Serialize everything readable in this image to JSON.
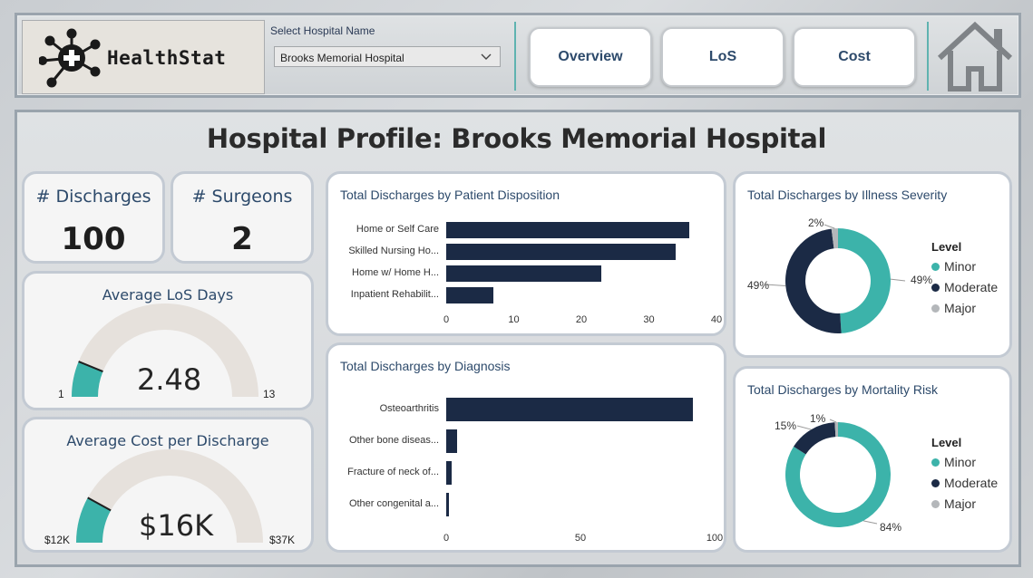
{
  "header": {
    "logo_text": "HealthStat",
    "select_label": "Select Hospital Name",
    "select_value": "Brooks Memorial Hospital",
    "nav": {
      "overview": "Overview",
      "los": "LoS",
      "cost": "Cost"
    }
  },
  "page": {
    "title": "Hospital Profile: Brooks Memorial Hospital"
  },
  "kpis": {
    "discharges_label": "# Discharges",
    "discharges_value": "100",
    "surgeons_label": "# Surgeons",
    "surgeons_value": "2"
  },
  "gauges": {
    "los": {
      "title": "Average LoS Days",
      "value_text": "2.48",
      "min_label": "1",
      "max_label": "13",
      "min": 1,
      "max": 13,
      "value": 2.48
    },
    "cost": {
      "title": "Average Cost per Discharge",
      "value_text": "$16K",
      "min_label": "$12K",
      "max_label": "$37K",
      "min": 12,
      "max": 37,
      "value": 16
    }
  },
  "colors": {
    "teal": "#3cb3aa",
    "navy": "#1b2a45",
    "grey": "#b4b7ba",
    "gauge_track": "#e6e1dc"
  },
  "chart_data": [
    {
      "type": "bar",
      "orientation": "horizontal",
      "title": "Total Discharges by Patient Disposition",
      "categories": [
        "Home or Self Care",
        "Skilled Nursing Ho...",
        "Home w/ Home H...",
        "Inpatient Rehabilit..."
      ],
      "values": [
        36,
        34,
        23,
        7
      ],
      "xlim": [
        0,
        40
      ],
      "ticks": [
        "0",
        "10",
        "20",
        "30",
        "40"
      ]
    },
    {
      "type": "bar",
      "orientation": "horizontal",
      "title": "Total Discharges by Diagnosis",
      "categories": [
        "Osteoarthritis",
        "Other bone diseas...",
        "Fracture of neck of...",
        "Other congenital a..."
      ],
      "values": [
        92,
        4,
        2,
        1
      ],
      "xlim": [
        0,
        100
      ],
      "ticks": [
        "0",
        "50",
        "100"
      ]
    },
    {
      "type": "pie",
      "donut": true,
      "title": "Total Discharges by Illness Severity",
      "legend_title": "Level",
      "labels": [
        "Minor",
        "Moderate",
        "Major"
      ],
      "values": [
        49,
        49,
        2
      ],
      "value_labels": [
        "49%",
        "49%",
        "2%"
      ]
    },
    {
      "type": "pie",
      "donut": true,
      "title": "Total Discharges by Mortality Risk",
      "legend_title": "Level",
      "labels": [
        "Minor",
        "Moderate",
        "Major"
      ],
      "values": [
        84,
        15,
        1
      ],
      "value_labels": [
        "84%",
        "15%",
        "1%"
      ]
    }
  ]
}
